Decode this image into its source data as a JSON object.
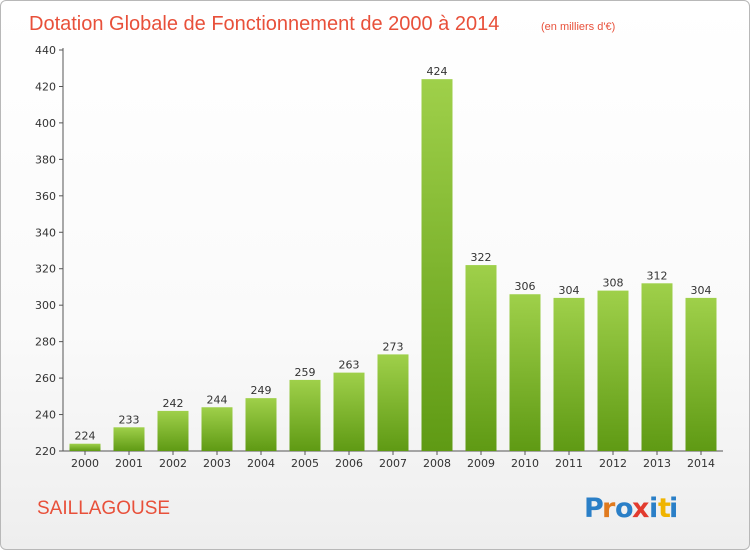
{
  "chart_data": {
    "type": "bar",
    "title": "Dotation Globale de Fonctionnement de 2000 à 2014",
    "subtitle": "(en milliers d'€)",
    "categories": [
      "2000",
      "2001",
      "2002",
      "2003",
      "2004",
      "2005",
      "2006",
      "2007",
      "2008",
      "2009",
      "2010",
      "2011",
      "2012",
      "2013",
      "2014"
    ],
    "values": [
      224,
      233,
      242,
      244,
      249,
      259,
      263,
      273,
      424,
      322,
      306,
      304,
      308,
      312,
      304
    ],
    "ylim": [
      220,
      440
    ],
    "yticks": [
      220,
      240,
      260,
      280,
      300,
      320,
      340,
      360,
      380,
      400,
      420,
      440
    ],
    "grid": false,
    "legend": "none",
    "bar_color_top": "#9fd04a",
    "bar_color_bottom": "#5f9a14",
    "text_color": "#e8503a"
  },
  "footer": {
    "commune": "SAILLAGOUSE",
    "logo": [
      "P",
      "r",
      "o",
      "x",
      "i",
      "t",
      "i"
    ],
    "logo_colors": [
      "#2a7fc7",
      "#e07a1e",
      "#2a7fc7",
      "#e23b2e",
      "#2a7fc7",
      "#f0b400",
      "#2a7fc7"
    ]
  }
}
